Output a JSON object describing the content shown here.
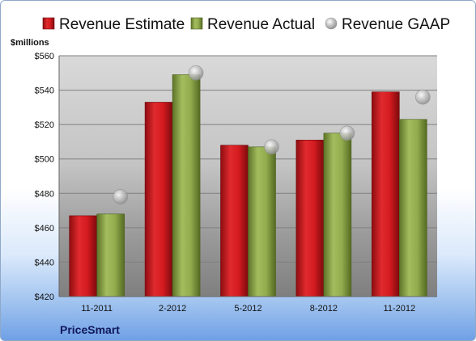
{
  "chart_data": {
    "type": "bar",
    "categories": [
      "11-2011",
      "2-2012",
      "5-2012",
      "8-2012",
      "11-2012"
    ],
    "series": [
      {
        "name": "Revenue Estimate",
        "type": "bar",
        "color": "#c8151b",
        "values": [
          467,
          533,
          508,
          511,
          539
        ]
      },
      {
        "name": "Revenue Actual",
        "type": "bar",
        "color": "#8aa646",
        "values": [
          468,
          549,
          507,
          515,
          523
        ]
      },
      {
        "name": "Revenue GAAP",
        "type": "scatter",
        "color": "#c0c0c0",
        "values": [
          478,
          550,
          507,
          515,
          536
        ]
      }
    ],
    "ylabel": "$millions",
    "ylim": [
      420,
      560
    ],
    "yticks": [
      "$420",
      "$440",
      "$460",
      "$480",
      "$500",
      "$520",
      "$540",
      "$560"
    ],
    "legend_position": "top",
    "grid": true,
    "footer": "PriceSmart"
  }
}
